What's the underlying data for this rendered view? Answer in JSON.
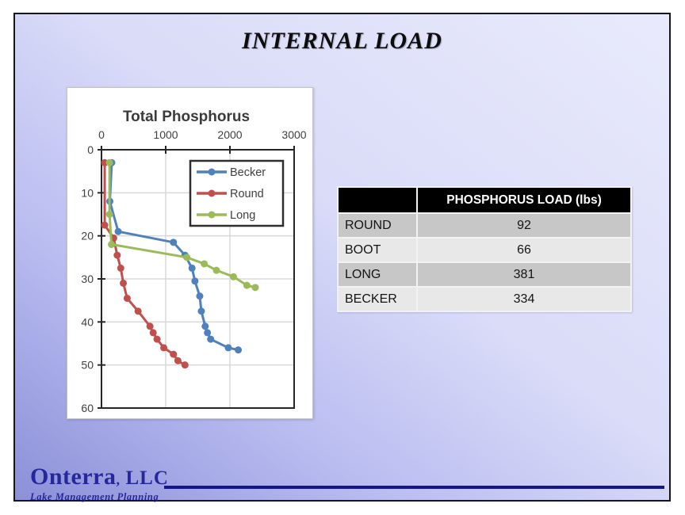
{
  "slide": {
    "title": "INTERNAL LOAD"
  },
  "chart_data": {
    "type": "line",
    "title": "Total Phosphorus",
    "orientation": "depth-profile",
    "x_axis": {
      "position": "top",
      "min": 0,
      "max": 3000,
      "ticks": [
        0,
        1000,
        2000,
        3000
      ]
    },
    "y_axis": {
      "position": "left",
      "min": 0,
      "max": 60,
      "ticks": [
        0,
        10,
        20,
        30,
        40,
        50,
        60
      ],
      "direction": "down"
    },
    "grid": true,
    "legend_position": "top-right",
    "series": [
      {
        "name": "Becker",
        "color": "#4F81BD",
        "points": [
          [
            160,
            3
          ],
          [
            130,
            12
          ],
          [
            260,
            19
          ],
          [
            1120,
            21.5
          ],
          [
            1300,
            24.5
          ],
          [
            1410,
            27.5
          ],
          [
            1455,
            30.5
          ],
          [
            1530,
            34
          ],
          [
            1555,
            37.5
          ],
          [
            1615,
            41
          ],
          [
            1650,
            42.5
          ],
          [
            1700,
            44
          ],
          [
            1975,
            46
          ],
          [
            2130,
            46.5
          ]
        ]
      },
      {
        "name": "Round",
        "color": "#C0504D",
        "points": [
          [
            50,
            3
          ],
          [
            50,
            17.5
          ],
          [
            190,
            20.5
          ],
          [
            245,
            24.5
          ],
          [
            300,
            27.5
          ],
          [
            340,
            31
          ],
          [
            400,
            34.5
          ],
          [
            570,
            37.5
          ],
          [
            755,
            41
          ],
          [
            805,
            42.5
          ],
          [
            865,
            44
          ],
          [
            970,
            46
          ],
          [
            1120,
            47.5
          ],
          [
            1190,
            49
          ],
          [
            1300,
            50
          ]
        ]
      },
      {
        "name": "Long",
        "color": "#9BBB59",
        "points": [
          [
            125,
            3
          ],
          [
            125,
            15
          ],
          [
            155,
            22
          ],
          [
            1330,
            25
          ],
          [
            1600,
            26.5
          ],
          [
            1790,
            28
          ],
          [
            2055,
            29.5
          ],
          [
            2265,
            31.5
          ],
          [
            2395,
            32
          ]
        ]
      }
    ]
  },
  "load_table": {
    "header": {
      "blank": "",
      "title": "PHOSPHORUS LOAD (lbs)"
    },
    "rows": [
      {
        "name": "ROUND",
        "value": "92"
      },
      {
        "name": "BOOT",
        "value": "66"
      },
      {
        "name": "LONG",
        "value": "381"
      },
      {
        "name": "BECKER",
        "value": "334"
      }
    ]
  },
  "footer": {
    "company": "Onterra",
    "company_comma": ",",
    "company_suffix": "LLC",
    "tagline": "Lake Management Planning"
  },
  "colors": {
    "series_becker": "#4F81BD",
    "series_round": "#C0504D",
    "series_long": "#9BBB59",
    "table_header_bg": "#000000",
    "table_row_dark": "#c7c7c7",
    "table_row_light": "#e8e8e8",
    "logo_navy": "#26279a",
    "rule_navy": "#14148c"
  }
}
